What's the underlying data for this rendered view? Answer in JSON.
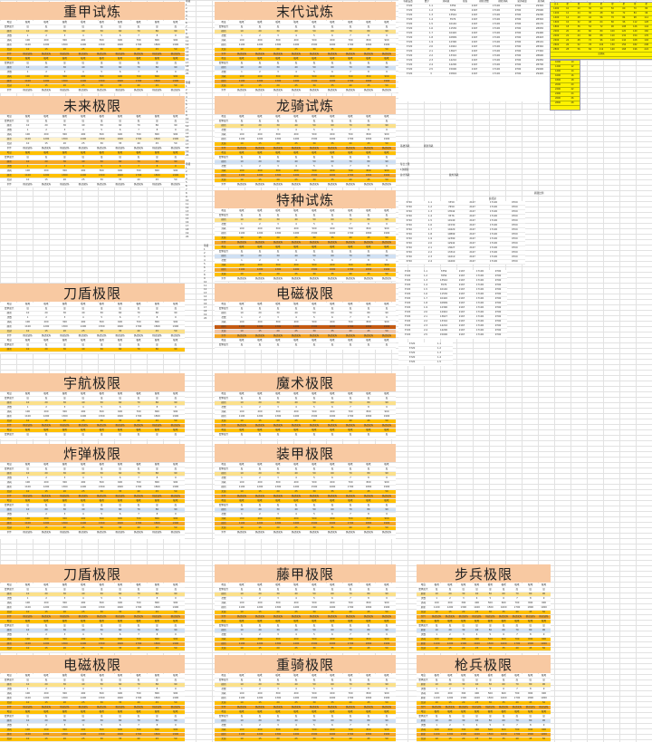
{
  "titles": {
    "t1": "重甲试炼",
    "t2": "末代试炼",
    "t3": "未来极限",
    "t4": "龙骑试炼",
    "t5": "特种试炼",
    "t6": "刀盾极限",
    "t7": "电磁极限",
    "t8": "宇航极限",
    "t9": "魔术极限",
    "t10": "炸弹极限",
    "t11": "装甲极限",
    "t12": "刀盾极限",
    "t13": "藤甲极限",
    "t14": "步兵极限",
    "t15": "电磁极限",
    "t16": "重骑极限",
    "t17": "枪兵极限"
  },
  "table": {
    "header": [
      "难度",
      "极难",
      "极难",
      "极难",
      "极难",
      "极难",
      "极难",
      "极难",
      "极难",
      "极难"
    ],
    "sub": [
      "要求最大",
      "度",
      "度",
      "度",
      "度",
      "度",
      "度",
      "度",
      "度",
      "度"
    ],
    "rows": [
      [
        "刷新",
        "10",
        "20",
        "30",
        "40",
        "50",
        "60",
        "70",
        "80",
        "90"
      ],
      [
        "次数",
        "1",
        "2",
        "3",
        "4",
        "5",
        "6",
        "7",
        "8",
        "9"
      ],
      [
        "消耗",
        "100",
        "200",
        "300",
        "400",
        "500",
        "600",
        "700",
        "800",
        "900"
      ],
      [
        "刷新",
        "1100",
        "1200",
        "1300",
        "1400",
        "1500",
        "1600",
        "1700",
        "1800",
        "1900"
      ],
      [
        "奖励",
        "10",
        "15",
        "20",
        "25",
        "30",
        "35",
        "40",
        "45",
        "50"
      ]
    ],
    "cond": [
      "条件",
      "挑战试炼",
      "挑战试炼",
      "挑战试炼",
      "挑战试炼",
      "挑战试炼",
      "挑战试炼",
      "挑战试炼",
      "挑战试炼",
      "挑战试炼"
    ]
  },
  "sidecol": {
    "values": [
      "等级",
      "1",
      "2",
      "3",
      "4",
      "5",
      "6",
      "7",
      "8",
      "9",
      "10",
      "11",
      "12",
      "13",
      "14",
      "15",
      "16",
      "17",
      "18",
      "19",
      "20"
    ]
  },
  "right_table": {
    "header": [
      "等级设置",
      "数字",
      "消耗级",
      "星级",
      "刷新次数",
      "刷新消耗",
      "总消耗量",
      "总消耗"
    ],
    "rows": [
      [
        "3720",
        "1.1",
        "3359",
        "2167",
        "17100",
        "9700",
        "29392"
      ],
      [
        "3720",
        "1.2",
        "7659",
        "2167",
        "17100",
        "9700",
        "25690"
      ],
      [
        "3720",
        "1.3",
        "13542",
        "2167",
        "17100",
        "9700",
        "29290"
      ],
      [
        "3720",
        "1.4",
        "3576",
        "2167",
        "17100",
        "9700",
        "28392"
      ],
      [
        "3720",
        "1.5",
        "10140",
        "2167",
        "17100",
        "9700",
        "26170"
      ],
      [
        "3720",
        "1.6",
        "11530",
        "2167",
        "17100",
        "9700",
        "28930"
      ],
      [
        "3720",
        "1.7",
        "10420",
        "2167",
        "17100",
        "9700",
        "29490"
      ],
      [
        "3720",
        "1.8",
        "10899",
        "2167",
        "17100",
        "9700",
        "28493"
      ],
      [
        "3720",
        "1.9",
        "12390",
        "2167",
        "17100",
        "9700",
        "28191"
      ],
      [
        "3720",
        "2.0",
        "12942",
        "2167",
        "17100",
        "9700",
        "28340"
      ],
      [
        "3720",
        "2.1",
        "13627",
        "2167",
        "17100",
        "9700",
        "27340"
      ],
      [
        "3720",
        "2.2",
        "13310",
        "2167",
        "17100",
        "9700",
        "28690"
      ],
      [
        "3720",
        "2.3",
        "14210",
        "2167",
        "17100",
        "9700",
        "29950"
      ],
      [
        "3720",
        "2.4",
        "14200",
        "2167",
        "17100",
        "9700",
        "28700"
      ],
      [
        "3720",
        "2.5",
        "15000",
        "2167",
        "17100",
        "9700",
        "29900"
      ],
      [
        "3720",
        "3",
        "15802",
        "2167",
        "17100",
        "9700",
        "29420"
      ]
    ]
  },
  "yellow_table": {
    "header": [
      "关卡",
      "星",
      "星",
      "星",
      "星",
      "星",
      "星",
      "星",
      "星"
    ],
    "rows": [
      [
        "1000",
        "10",
        "20",
        "30",
        "40",
        "50",
        "60",
        "70",
        "80"
      ],
      [
        "1200",
        "12",
        "24",
        "36",
        "48",
        "60",
        "72",
        "84",
        "96"
      ],
      [
        "1400",
        "14",
        "28",
        "42",
        "56",
        "70",
        "84",
        "98",
        "112"
      ],
      [
        "1600",
        "16",
        "32",
        "48",
        "64",
        "80",
        "96",
        "112",
        "128"
      ],
      [
        "1800",
        "18",
        "36",
        "54",
        "72",
        "90",
        "108",
        "126",
        "144"
      ],
      [
        "2000",
        "20",
        "40",
        "60",
        "80",
        "100",
        "120",
        "140",
        "160"
      ],
      [
        "2200",
        "22",
        "44",
        "66",
        "88",
        "110",
        "132",
        "154",
        "176"
      ],
      [
        "2400",
        "24",
        "48",
        "72",
        "96",
        "120",
        "144",
        "168",
        "192"
      ],
      [
        "2600",
        "26",
        "52",
        "78",
        "104",
        "130",
        "156",
        "182",
        "208"
      ],
      [
        "2800",
        "28",
        "56",
        "84",
        "112",
        "140",
        "168",
        "196",
        "224"
      ]
    ],
    "total_label": "总消耗"
  },
  "notes": {
    "n1": "基础消耗",
    "n2": "刷新消耗",
    "n3": "每日上限",
    "n4": "1次刷新",
    "n5": "总计消耗",
    "n6": "额外消耗",
    "n7": "总奖励",
    "n8": "消耗比例",
    "n9": "刷新比例"
  },
  "colors": {
    "title_bg": "#f8c9a2",
    "yellow": "#ffc000",
    "orange": "#f6a623",
    "light_yellow": "#fbe08a",
    "bright_yellow": "#fff200"
  }
}
